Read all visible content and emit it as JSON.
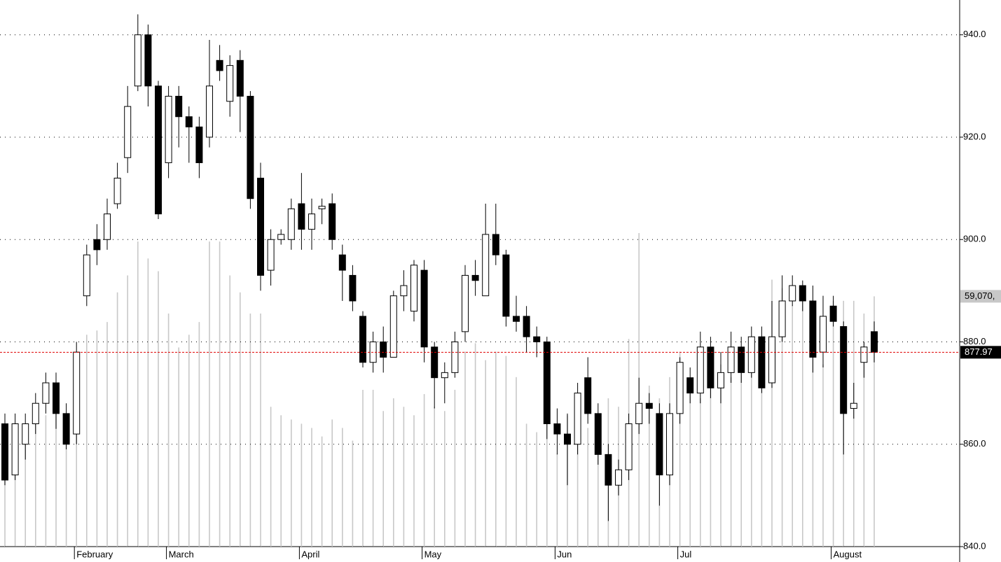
{
  "chart_data": {
    "type": "candlestick",
    "categories": [
      null,
      null,
      null,
      null,
      null,
      null,
      null,
      "February",
      null,
      null,
      null,
      null,
      null,
      null,
      null,
      null,
      "March",
      null,
      null,
      null,
      null,
      null,
      null,
      null,
      null,
      null,
      null,
      null,
      null,
      "April",
      null,
      null,
      null,
      null,
      null,
      null,
      null,
      null,
      null,
      null,
      null,
      "May",
      null,
      null,
      null,
      null,
      null,
      null,
      null,
      null,
      null,
      null,
      null,
      null,
      "Jun",
      null,
      null,
      null,
      null,
      null,
      null,
      null,
      null,
      null,
      null,
      null,
      "Jul",
      null,
      null,
      null,
      null,
      null,
      null,
      null,
      null,
      null,
      null,
      null,
      null,
      null,
      null,
      "August",
      null,
      null,
      null,
      null
    ],
    "open": [
      864,
      854,
      860,
      864,
      868,
      872,
      866,
      862,
      889,
      900,
      900,
      907,
      916,
      930,
      940,
      930,
      915,
      928,
      924,
      922,
      920,
      935,
      927,
      935,
      928,
      912,
      894,
      900,
      900,
      907,
      902,
      906,
      907,
      897,
      893,
      885,
      876,
      880,
      877,
      889,
      886,
      894,
      879,
      873,
      874,
      882,
      893,
      889,
      901,
      897,
      885,
      885,
      881,
      880,
      864,
      862,
      860,
      873,
      866,
      858,
      852,
      855,
      864,
      868,
      866,
      854,
      866,
      873,
      870,
      879,
      871,
      874,
      879,
      874,
      881,
      872,
      881,
      888,
      891,
      888,
      878,
      887,
      883,
      867,
      876,
      882
    ],
    "high": [
      866,
      866,
      866,
      870,
      874,
      874,
      868,
      880,
      899,
      903,
      908,
      915,
      930,
      944,
      942,
      931,
      930,
      930,
      926,
      924,
      939,
      938,
      936,
      937,
      929,
      915,
      902,
      902,
      908,
      913,
      908,
      908,
      909,
      899,
      895,
      886,
      882,
      883,
      890,
      894,
      896,
      896,
      880,
      876,
      882,
      895,
      896,
      907,
      907,
      898,
      889,
      887,
      883,
      881,
      867,
      866,
      872,
      877,
      868,
      860,
      857,
      866,
      873,
      870,
      868,
      868,
      877,
      875,
      882,
      881,
      878,
      882,
      881,
      883,
      883,
      888,
      893,
      893,
      892,
      891,
      889,
      889,
      884,
      872,
      880,
      884
    ],
    "low": [
      852,
      853,
      857,
      862,
      866,
      863,
      859,
      860,
      887,
      895,
      898,
      906,
      913,
      929,
      926,
      904,
      912,
      918,
      915,
      912,
      918,
      931,
      924,
      921,
      906,
      890,
      891,
      899,
      898,
      898,
      898,
      903,
      898,
      888,
      886,
      875,
      874,
      874,
      877,
      886,
      884,
      876,
      867,
      868,
      873,
      880,
      889,
      889,
      895,
      883,
      882,
      878,
      877,
      861,
      858,
      852,
      858,
      864,
      856,
      845,
      850,
      853,
      862,
      864,
      848,
      852,
      864,
      868,
      868,
      869,
      868,
      872,
      872,
      873,
      870,
      871,
      880,
      887,
      886,
      874,
      875,
      883,
      858,
      865,
      873,
      876
    ],
    "close": [
      853,
      864,
      864,
      868,
      872,
      866,
      860,
      878,
      897,
      898,
      905,
      912,
      926,
      940,
      930,
      905,
      928,
      924,
      922,
      915,
      930,
      933,
      934,
      928,
      908,
      893,
      900,
      901,
      906,
      902,
      905,
      906.5,
      900,
      894,
      888,
      876,
      880,
      877,
      889,
      891,
      895,
      879,
      873,
      874,
      880,
      893,
      892,
      901,
      897,
      885,
      884,
      881,
      880,
      864,
      862,
      860,
      870,
      866,
      858,
      852,
      855,
      864,
      868,
      867,
      854,
      866,
      876,
      870,
      879,
      871,
      874,
      879,
      874,
      881,
      871,
      881,
      888,
      891,
      888,
      877,
      885,
      884,
      866,
      868,
      879,
      877.97
    ],
    "volume": [
      28000,
      27000,
      29000,
      30000,
      31000,
      32000,
      30000,
      45000,
      50000,
      51000,
      53000,
      60000,
      64000,
      72000,
      68000,
      65000,
      55000,
      47000,
      50000,
      53000,
      72000,
      72000,
      64000,
      60000,
      55000,
      55000,
      33000,
      31000,
      30000,
      29000,
      28000,
      26000,
      30000,
      28000,
      25000,
      37000,
      37000,
      32000,
      35000,
      33000,
      31000,
      36000,
      33000,
      32000,
      37000,
      46000,
      48000,
      44000,
      46000,
      45000,
      40000,
      29000,
      27000,
      30000,
      22000,
      31000,
      26000,
      28000,
      30000,
      35000,
      33000,
      49000,
      74000,
      38000,
      35000,
      40000,
      46000,
      37000,
      35000,
      41000,
      43000,
      40000,
      42000,
      48000,
      47000,
      63000,
      61000,
      57000,
      58000,
      55000,
      43000,
      58000,
      58000,
      58000,
      55000,
      59070
    ],
    "volume_label": "59,070,",
    "ylim": [
      840,
      946.8
    ],
    "yticks": [
      {
        "value": 840,
        "label": "840.0"
      },
      {
        "value": 860,
        "label": "860.0"
      },
      {
        "value": 880,
        "label": "880.0"
      },
      {
        "value": 900,
        "label": "900.0"
      },
      {
        "value": 920,
        "label": "920.0"
      },
      {
        "value": 940,
        "label": "940.0"
      }
    ],
    "volume_lim": [
      0,
      129000
    ],
    "grid": true,
    "up_color": "#ffffff",
    "down_color": "#000000",
    "volume_color": "#c8c8c8",
    "last_line_color": "#e00000"
  }
}
